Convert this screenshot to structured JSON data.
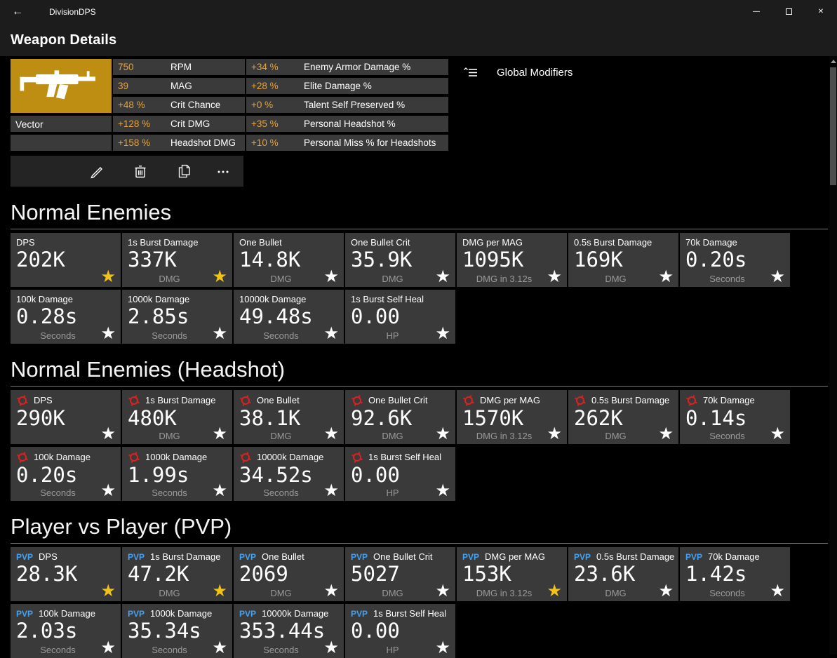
{
  "colors": {
    "background": "#000000",
    "titlebar_bg": "#1C1C1C",
    "panel_bg": "#3A3A3A",
    "toolbar_bg": "#242424",
    "accent_gold": "#BE8E12",
    "value_orange": "#E8A33B",
    "star_yellow": "#F2C313",
    "star_white": "#FFFFFF",
    "pvp_blue": "#42A3F5",
    "headshot_red": "#E02020",
    "unit_gray": "#9A9A9A",
    "divider_gray": "#7A7A7A"
  },
  "titlebar": {
    "app_title": "DivisionDPS",
    "back_icon": "←",
    "window_buttons": [
      "minimize",
      "maximize",
      "close"
    ]
  },
  "page": {
    "title": "Weapon Details"
  },
  "weapon": {
    "name": "Vector",
    "icon": "smg-silhouette",
    "stats_col1": [
      {
        "value": "750",
        "label": "RPM"
      },
      {
        "value": "39",
        "label": "MAG"
      },
      {
        "value": "+48 %",
        "label": "Crit Chance"
      },
      {
        "value": "+128 %",
        "label": "Crit DMG"
      },
      {
        "value": "+158 %",
        "label": "Headshot DMG"
      }
    ],
    "stats_col2": [
      {
        "value": "+34 %",
        "label": "Enemy Armor Damage %"
      },
      {
        "value": "+28 %",
        "label": "Elite Damage %"
      },
      {
        "value": "+0 %",
        "label": "Talent Self Preserved %"
      },
      {
        "value": "+35 %",
        "label": "Personal Headshot %"
      },
      {
        "value": "+10 %",
        "label": "Personal Miss % for Headshots"
      }
    ],
    "toolbar_buttons": [
      "edit",
      "delete",
      "copy",
      "more"
    ]
  },
  "global_modifiers": {
    "label": "Global Modifiers",
    "icon": "collapse-pane"
  },
  "badges": {
    "pvp_label": "PVP"
  },
  "sections": [
    {
      "title": "Normal Enemies",
      "badge": null,
      "rows": [
        [
          {
            "title": "DPS",
            "value": "202K",
            "unit": "",
            "starred": true
          },
          {
            "title": "1s Burst Damage",
            "value": "337K",
            "unit": "DMG",
            "starred": true
          },
          {
            "title": "One Bullet",
            "value": "14.8K",
            "unit": "DMG",
            "starred": false
          },
          {
            "title": "One Bullet Crit",
            "value": "35.9K",
            "unit": "DMG",
            "starred": false
          },
          {
            "title": "DMG per MAG",
            "value": "1095K",
            "unit": "DMG in 3.12s",
            "starred": false
          },
          {
            "title": "0.5s Burst Damage",
            "value": "169K",
            "unit": "DMG",
            "starred": false
          },
          {
            "title": "70k Damage",
            "value": "0.20s",
            "unit": "Seconds",
            "starred": false
          }
        ],
        [
          {
            "title": "100k Damage",
            "value": "0.28s",
            "unit": "Seconds",
            "starred": false
          },
          {
            "title": "1000k Damage",
            "value": "2.85s",
            "unit": "Seconds",
            "starred": false
          },
          {
            "title": "10000k Damage",
            "value": "49.48s",
            "unit": "Seconds",
            "starred": false
          },
          {
            "title": "1s Burst Self Heal",
            "value": "0.00",
            "unit": "HP",
            "starred": false
          }
        ]
      ]
    },
    {
      "title": "Normal Enemies (Headshot)",
      "badge": "headshot",
      "rows": [
        [
          {
            "title": "DPS",
            "value": "290K",
            "unit": "",
            "starred": false
          },
          {
            "title": "1s Burst Damage",
            "value": "480K",
            "unit": "DMG",
            "starred": false
          },
          {
            "title": "One Bullet",
            "value": "38.1K",
            "unit": "DMG",
            "starred": false
          },
          {
            "title": "One Bullet Crit",
            "value": "92.6K",
            "unit": "DMG",
            "starred": false
          },
          {
            "title": "DMG per MAG",
            "value": "1570K",
            "unit": "DMG in 3.12s",
            "starred": false
          },
          {
            "title": "0.5s Burst Damage",
            "value": "262K",
            "unit": "DMG",
            "starred": false
          },
          {
            "title": "70k Damage",
            "value": "0.14s",
            "unit": "Seconds",
            "starred": false
          }
        ],
        [
          {
            "title": "100k Damage",
            "value": "0.20s",
            "unit": "Seconds",
            "starred": false
          },
          {
            "title": "1000k Damage",
            "value": "1.99s",
            "unit": "Seconds",
            "starred": false
          },
          {
            "title": "10000k Damage",
            "value": "34.52s",
            "unit": "Seconds",
            "starred": false
          },
          {
            "title": "1s Burst Self Heal",
            "value": "0.00",
            "unit": "HP",
            "starred": false
          }
        ]
      ]
    },
    {
      "title": "Player vs Player (PVP)",
      "badge": "pvp",
      "rows": [
        [
          {
            "title": "DPS",
            "value": "28.3K",
            "unit": "",
            "starred": true
          },
          {
            "title": "1s Burst Damage",
            "value": "47.2K",
            "unit": "DMG",
            "starred": true
          },
          {
            "title": "One Bullet",
            "value": "2069",
            "unit": "DMG",
            "starred": false
          },
          {
            "title": "One Bullet Crit",
            "value": "5027",
            "unit": "DMG",
            "starred": false
          },
          {
            "title": "DMG per MAG",
            "value": "153K",
            "unit": "DMG in 3.12s",
            "starred": true
          },
          {
            "title": "0.5s Burst Damage",
            "value": "23.6K",
            "unit": "DMG",
            "starred": false
          },
          {
            "title": "70k Damage",
            "value": "1.42s",
            "unit": "Seconds",
            "starred": false
          }
        ],
        [
          {
            "title": "100k Damage",
            "value": "2.03s",
            "unit": "Seconds",
            "starred": false
          },
          {
            "title": "1000k Damage",
            "value": "35.34s",
            "unit": "Seconds",
            "starred": false
          },
          {
            "title": "10000k Damage",
            "value": "353.44s",
            "unit": "Seconds",
            "starred": false
          },
          {
            "title": "1s Burst Self Heal",
            "value": "0.00",
            "unit": "HP",
            "starred": false
          }
        ]
      ]
    }
  ]
}
